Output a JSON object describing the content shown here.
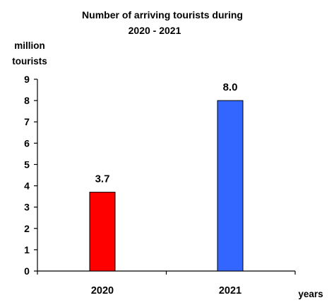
{
  "chart_data": {
    "type": "bar",
    "title_lines": [
      "Number of  arriving tourists  during",
      "2020 - 2021"
    ],
    "ylabel_lines": [
      "million",
      "tourists"
    ],
    "xlabel": "years",
    "categories": [
      "2020",
      "2021"
    ],
    "values": [
      3.7,
      8.0
    ],
    "value_labels": [
      "3.7",
      "8.0"
    ],
    "ylim": [
      0,
      9
    ],
    "yticks": [
      "0",
      "1",
      "2",
      "3",
      "4",
      "5",
      "6",
      "7",
      "8",
      "9"
    ],
    "grid": false,
    "legend": "none",
    "bar_colors": [
      "#ff0000",
      "#3366ff"
    ],
    "bar_stroke": "#000000"
  }
}
